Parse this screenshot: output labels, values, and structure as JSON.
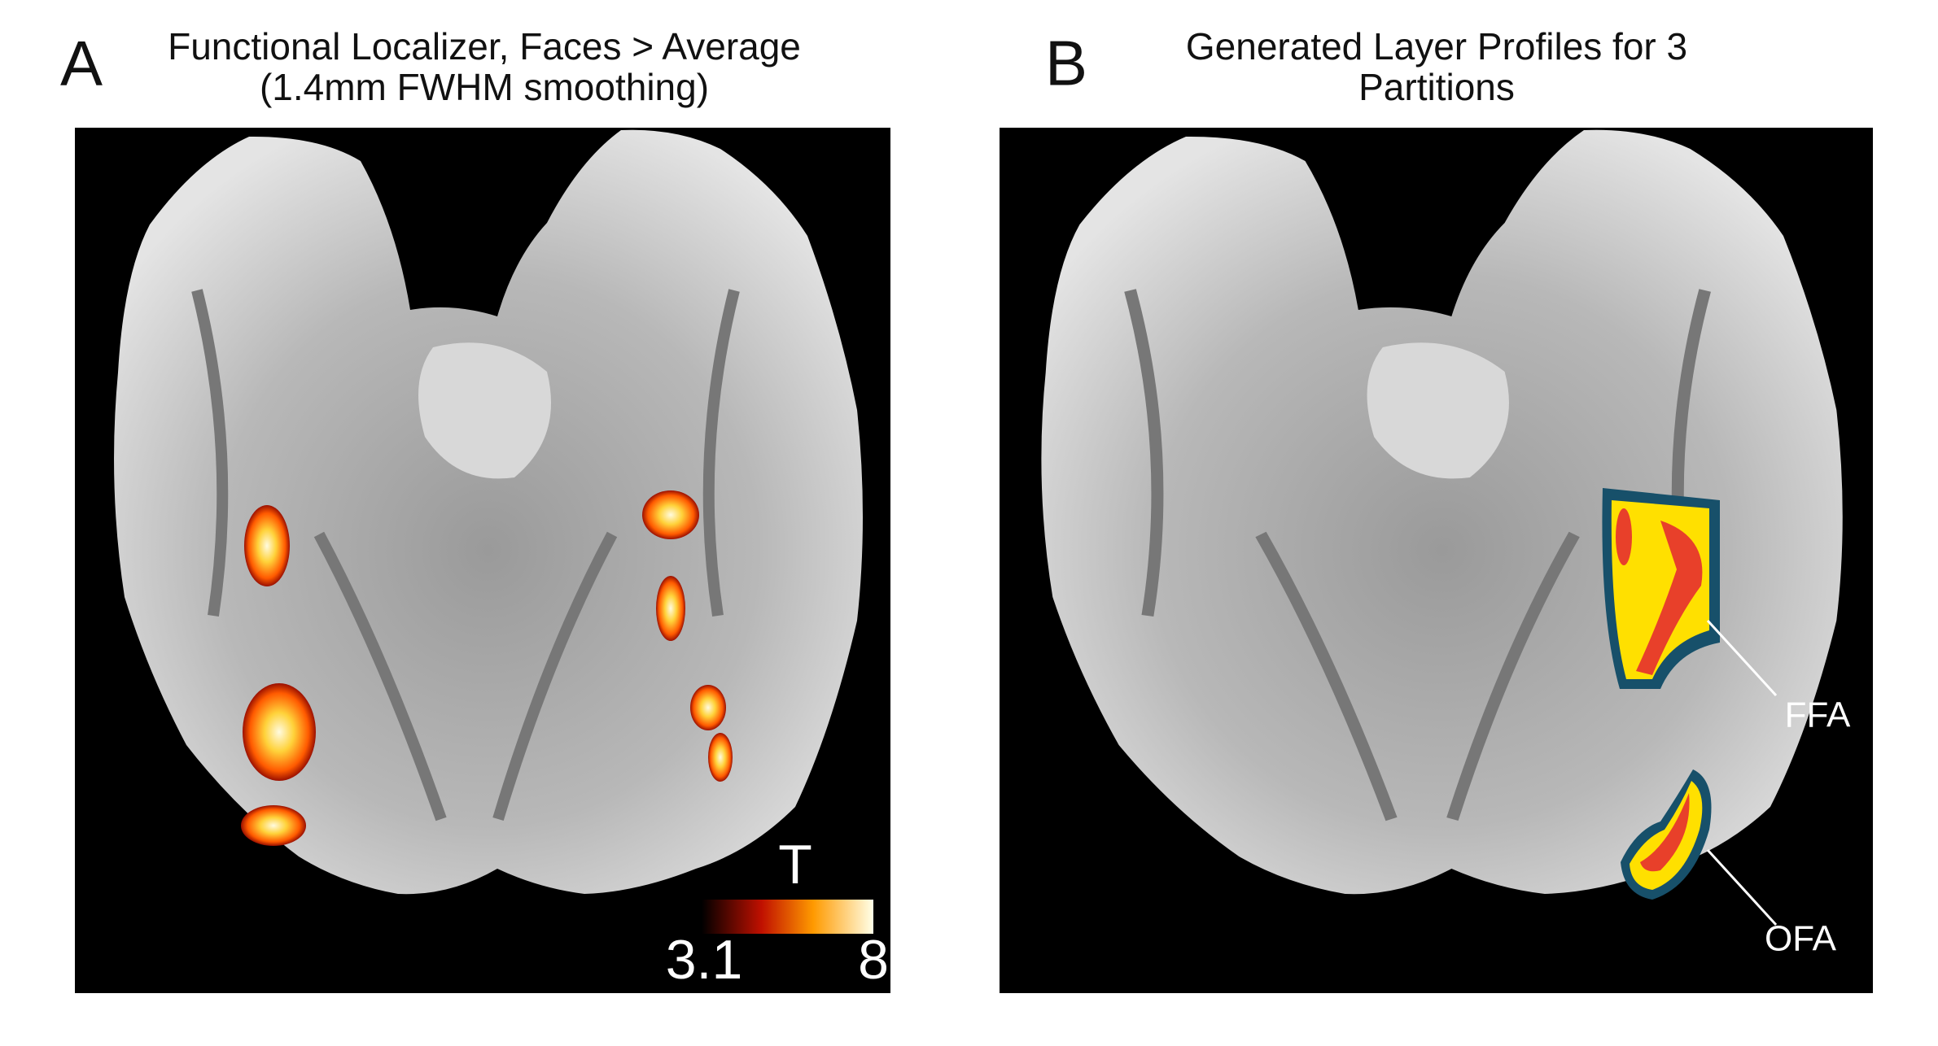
{
  "panel_a": {
    "label": "A",
    "title_lines": [
      "Functional Localizer, Faces > Average",
      "(1.4mm FWHM smoothing)"
    ],
    "colorbar": {
      "title": "T",
      "min": 3.1,
      "max": 8
    }
  },
  "panel_b": {
    "label": "B",
    "title_lines": [
      "Generated Layer Profiles for 3",
      "Partitions"
    ],
    "annotations": [
      "FFA",
      "OFA"
    ]
  }
}
